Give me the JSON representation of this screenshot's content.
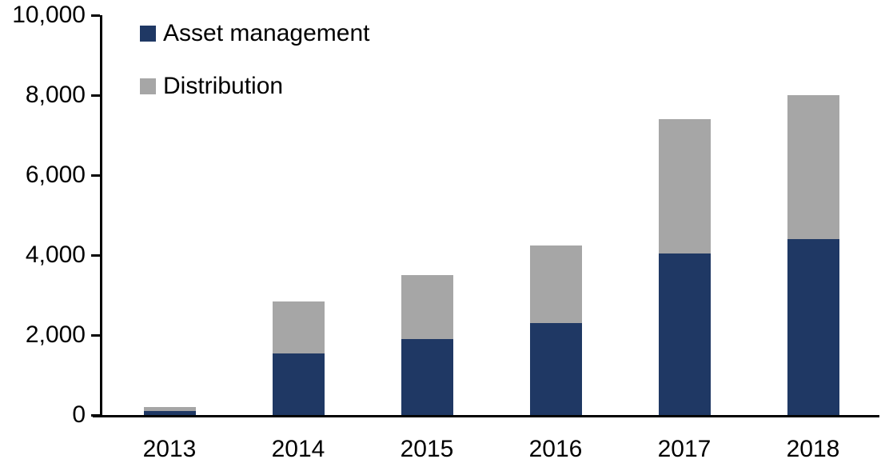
{
  "chart_data": {
    "type": "bar",
    "stacked": true,
    "title": "",
    "xlabel": "",
    "ylabel": "",
    "categories": [
      "2013",
      "2014",
      "2015",
      "2016",
      "2017",
      "2018"
    ],
    "series": [
      {
        "name": "Asset management",
        "color": "#1F3864",
        "values": [
          100,
          1550,
          1900,
          2300,
          4050,
          4400
        ]
      },
      {
        "name": "Distribution",
        "color": "#A6A6A6",
        "values": [
          100,
          1300,
          1600,
          1950,
          3350,
          3600
        ]
      }
    ],
    "totals": [
      200,
      2850,
      3500,
      4250,
      7400,
      8000
    ],
    "ylim": [
      0,
      10000
    ],
    "ytick_interval": 2000,
    "ytick_labels": [
      "0",
      "2,000",
      "4,000",
      "6,000",
      "8,000",
      "10,000"
    ],
    "grid": false,
    "legend_position": "top-left",
    "axis_color": "#000000",
    "background_color": "#FFFFFF",
    "text_color": "#000000"
  }
}
